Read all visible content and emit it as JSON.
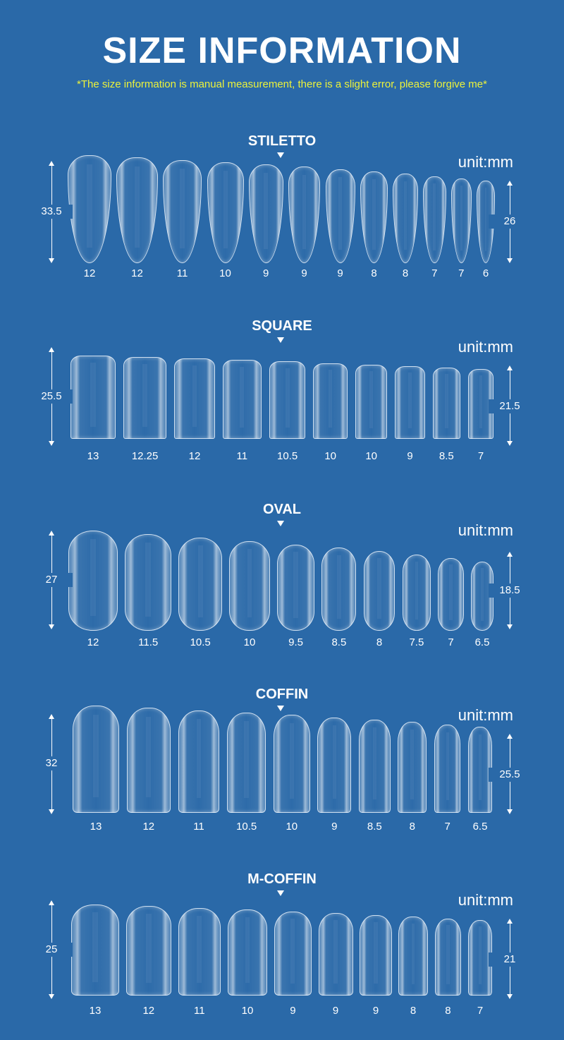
{
  "header": {
    "title": "SIZE INFORMATION",
    "note": "*The size information is manual measurement, there is a slight error, please forgive me*"
  },
  "unit_label": "unit:mm",
  "shapes": [
    {
      "key": "stiletto",
      "name": "STILETTO",
      "longest_length": "33.5",
      "shortest_length": "26",
      "sizes": [
        "12",
        "12",
        "11",
        "10",
        "9",
        "9",
        "9",
        "8",
        "8",
        "7",
        "7",
        "6"
      ]
    },
    {
      "key": "square",
      "name": "SQUARE",
      "longest_length": "25.5",
      "shortest_length": "21.5",
      "sizes": [
        "13",
        "12.25",
        "12",
        "11",
        "10.5",
        "10",
        "10",
        "9",
        "8.5",
        "7"
      ]
    },
    {
      "key": "oval",
      "name": "OVAL",
      "longest_length": "27",
      "shortest_length": "18.5",
      "sizes": [
        "12",
        "11.5",
        "10.5",
        "10",
        "9.5",
        "8.5",
        "8",
        "7.5",
        "7",
        "6.5"
      ]
    },
    {
      "key": "coffin",
      "name": "COFFIN",
      "longest_length": "32",
      "shortest_length": "25.5",
      "sizes": [
        "13",
        "12",
        "11",
        "10.5",
        "10",
        "9",
        "8.5",
        "8",
        "7",
        "6.5"
      ]
    },
    {
      "key": "mcoffin",
      "name": "M-COFFIN",
      "longest_length": "25",
      "shortest_length": "21",
      "sizes": [
        "13",
        "12",
        "11",
        "10",
        "9",
        "9",
        "9",
        "8",
        "8",
        "7"
      ]
    }
  ],
  "colors": {
    "background": "#2a69a8",
    "note": "#ecf23a",
    "text": "#ffffff"
  }
}
